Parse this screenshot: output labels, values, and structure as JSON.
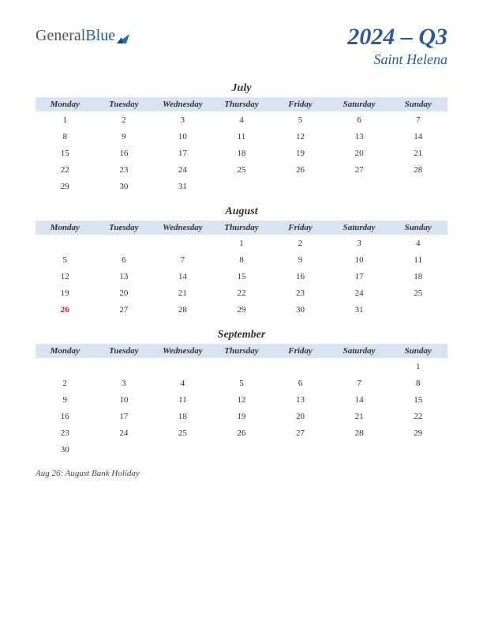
{
  "logo": {
    "part1": "General",
    "part2": "Blue"
  },
  "title": {
    "main": "2024 – Q3",
    "sub": "Saint Helena"
  },
  "colors": {
    "header_bg": "#d9e3f2",
    "accent": "#2a5a9a",
    "holiday": "#b02828",
    "text": "#333333",
    "background": "#ffffff"
  },
  "typography": {
    "title_fontsize": 30,
    "subtitle_fontsize": 18,
    "month_fontsize": 14,
    "dayhdr_fontsize": 11,
    "cell_fontsize": 11,
    "footnote_fontsize": 11,
    "font_family": "Georgia, 'Times New Roman', serif"
  },
  "day_headers": [
    "Monday",
    "Tuesday",
    "Wednesday",
    "Thursday",
    "Friday",
    "Saturday",
    "Sunday"
  ],
  "months": [
    {
      "name": "July",
      "weeks": [
        [
          "1",
          "2",
          "3",
          "4",
          "5",
          "6",
          "7"
        ],
        [
          "8",
          "9",
          "10",
          "11",
          "12",
          "13",
          "14"
        ],
        [
          "15",
          "16",
          "17",
          "18",
          "19",
          "20",
          "21"
        ],
        [
          "22",
          "23",
          "24",
          "25",
          "26",
          "27",
          "28"
        ],
        [
          "29",
          "30",
          "31",
          "",
          "",
          "",
          ""
        ]
      ],
      "holidays": []
    },
    {
      "name": "August",
      "weeks": [
        [
          "",
          "",
          "",
          "1",
          "2",
          "3",
          "4"
        ],
        [
          "5",
          "6",
          "7",
          "8",
          "9",
          "10",
          "11"
        ],
        [
          "12",
          "13",
          "14",
          "15",
          "16",
          "17",
          "18"
        ],
        [
          "19",
          "20",
          "21",
          "22",
          "23",
          "24",
          "25"
        ],
        [
          "26",
          "27",
          "28",
          "29",
          "30",
          "31",
          ""
        ]
      ],
      "holidays": [
        "26"
      ]
    },
    {
      "name": "September",
      "weeks": [
        [
          "",
          "",
          "",
          "",
          "",
          "",
          "1"
        ],
        [
          "2",
          "3",
          "4",
          "5",
          "6",
          "7",
          "8"
        ],
        [
          "9",
          "10",
          "11",
          "12",
          "13",
          "14",
          "15"
        ],
        [
          "16",
          "17",
          "18",
          "19",
          "20",
          "21",
          "22"
        ],
        [
          "23",
          "24",
          "25",
          "26",
          "27",
          "28",
          "29"
        ],
        [
          "30",
          "",
          "",
          "",
          "",
          "",
          ""
        ]
      ],
      "holidays": []
    }
  ],
  "footnote": "Aug 26: August Bank Holiday"
}
